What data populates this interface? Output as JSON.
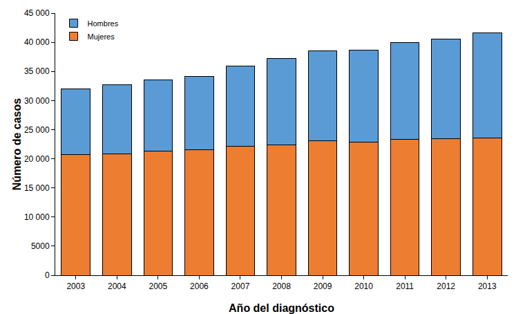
{
  "chart_data": {
    "type": "bar",
    "stacked": true,
    "x_label": "Año del diagnóstico",
    "y_label": "Número de casos",
    "categories": [
      "2003",
      "2004",
      "2005",
      "2006",
      "2007",
      "2008",
      "2009",
      "2010",
      "2011",
      "2012",
      "2013"
    ],
    "series": [
      {
        "name": "Mujeres",
        "color": "#ed7d31",
        "values": [
          20700,
          20800,
          21300,
          21500,
          22100,
          22400,
          23100,
          22900,
          23300,
          23400,
          23600
        ]
      },
      {
        "name": "Hombres",
        "color": "#5b9bd5",
        "values": [
          11300,
          11900,
          12300,
          12600,
          13800,
          14800,
          15400,
          15700,
          16700,
          17100,
          18000
        ]
      }
    ],
    "ylim": [
      0,
      45000
    ],
    "yticks": [
      0,
      5000,
      {
        "value": 10000,
        "label": "10 000"
      },
      {
        "value": 15000,
        "label": "15 000"
      },
      {
        "value": 20000,
        "label": "20 000"
      },
      {
        "value": 25000,
        "label": "25 000"
      },
      {
        "value": 30000,
        "label": "30 000"
      },
      {
        "value": 35000,
        "label": "35 000"
      },
      {
        "value": 40000,
        "label": "40 000"
      },
      {
        "value": 45000,
        "label": "45 000"
      }
    ],
    "grid": false,
    "legend": "upper left"
  }
}
